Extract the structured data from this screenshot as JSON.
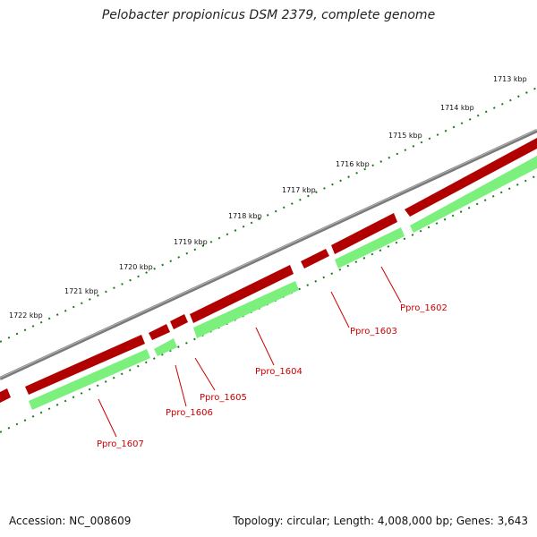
{
  "title": "Pelobacter propionicus DSM 2379, complete genome",
  "footer": {
    "accession": "Accession: NC_008609",
    "topology": "Topology: circular; Length: 4,008,000 bp; Genes: 3,643"
  },
  "ruler": {
    "ticks": [
      {
        "label": "1713 kbp"
      },
      {
        "label": "1714 kbp"
      },
      {
        "label": "1715 kbp"
      },
      {
        "label": "1716 kbp"
      },
      {
        "label": "1717 kbp"
      },
      {
        "label": "1718 kbp"
      },
      {
        "label": "1719 kbp"
      },
      {
        "label": "1720 kbp"
      },
      {
        "label": "1721 kbp"
      },
      {
        "label": "1722 kbp"
      }
    ]
  },
  "genes": [
    {
      "name": "Ppro_1602"
    },
    {
      "name": "Ppro_1603"
    },
    {
      "name": "Ppro_1604"
    },
    {
      "name": "Ppro_1605"
    },
    {
      "name": "Ppro_1606"
    },
    {
      "name": "Ppro_1607"
    }
  ],
  "colors": {
    "backbone": "#808080",
    "forward_strand": "#ff2020",
    "reverse_strand": "#2eaa2e",
    "ruler": "#1a7a1a",
    "gene_label": "#cc0000"
  }
}
